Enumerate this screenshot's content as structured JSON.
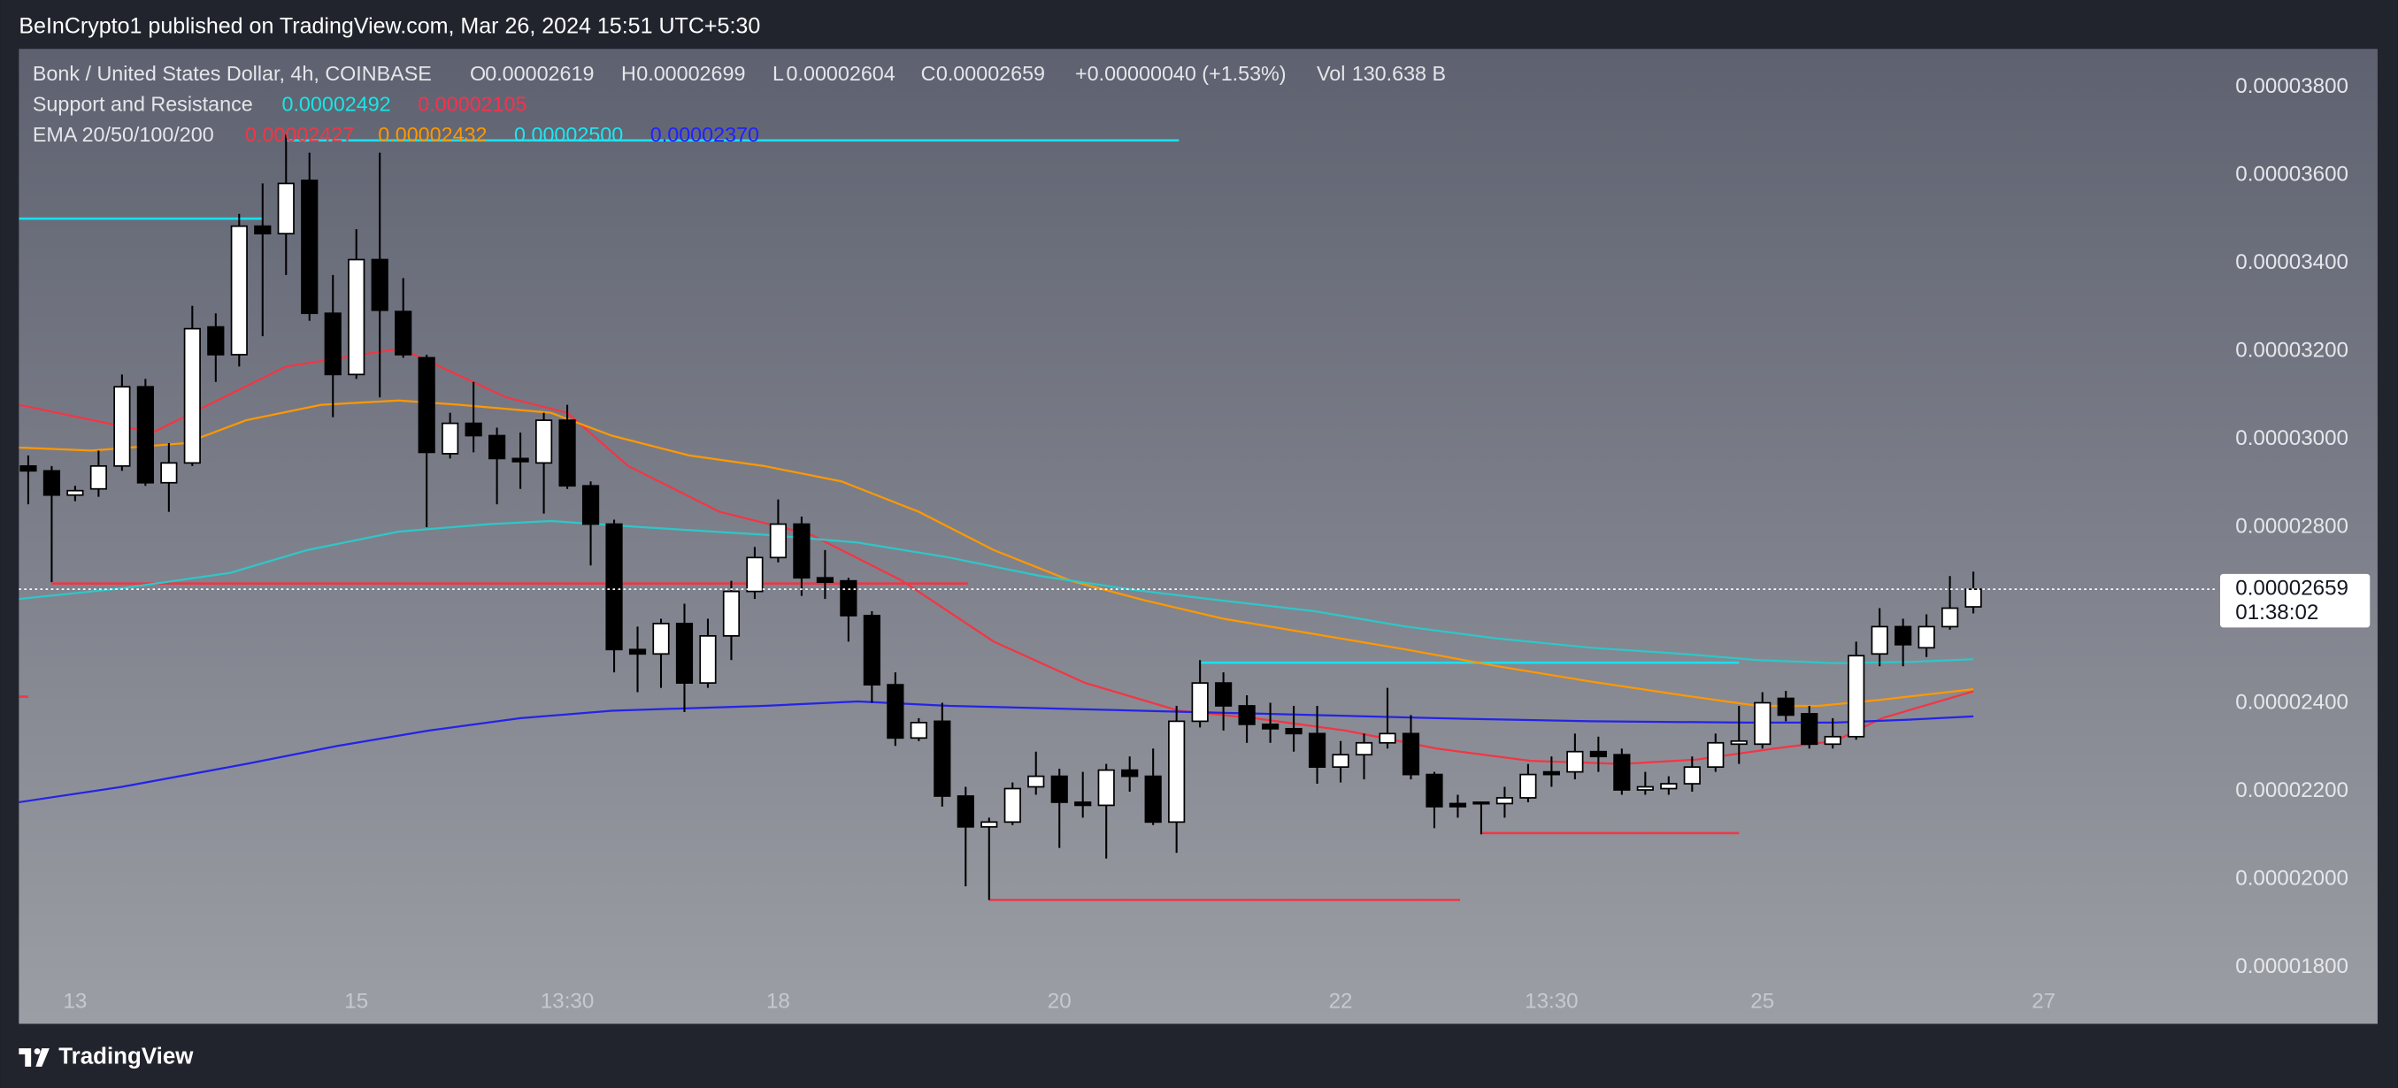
{
  "header": "BeInCrypto1 published on TradingView.com, Mar 26, 2024 15:51 UTC+5:30",
  "footer": "TradingView",
  "chart_data": {
    "type": "candlestick",
    "title": "Bonk / United States Dollar, 4h, COINBASE",
    "ohlc_labels": [
      "O",
      "H",
      "L",
      "C"
    ],
    "change": "+0.00000040 (+1.53%)",
    "volume_label": "Vol",
    "volume": "130.638 B",
    "levels_title": "Support and Resistance",
    "ema_title": "EMA 20/50/100/200",
    "countdown": "01:38:02",
    "up_color": "#ffffff",
    "down_color": "#000000",
    "grid": false,
    "xlim": [
      -0.4,
      93.4
    ],
    "xticks": [
      {
        "value": 2,
        "label": "13"
      },
      {
        "value": 14,
        "label": "15"
      },
      {
        "value": 23,
        "label": "13:30"
      },
      {
        "value": 32,
        "label": "18"
      },
      {
        "value": 44,
        "label": "20"
      },
      {
        "value": 56,
        "label": "22"
      },
      {
        "value": 65,
        "label": "13:30"
      },
      {
        "value": 74,
        "label": "25"
      },
      {
        "value": 86,
        "label": "27"
      }
    ],
    "ylim": [
      1.6715e-05,
      3.8868e-05
    ],
    "yticks": [
      {
        "value": 3.8e-05,
        "label": "0.00003800"
      },
      {
        "value": 3.6e-05,
        "label": "0.00003600"
      },
      {
        "value": 3.4e-05,
        "label": "0.00003400"
      },
      {
        "value": 3.2e-05,
        "label": "0.00003200"
      },
      {
        "value": 3e-05,
        "label": "0.00003000"
      },
      {
        "value": 2.8e-05,
        "label": "0.00002800"
      },
      {
        "value": 2.6e-05,
        "label": "0.00002600"
      },
      {
        "value": 2.4e-05,
        "label": "0.00002400"
      },
      {
        "value": 2.2e-05,
        "label": "0.00002200"
      },
      {
        "value": 2e-05,
        "label": "0.00002000"
      },
      {
        "value": 1.8e-05,
        "label": "0.00001800"
      }
    ],
    "candles": {
      "open": [
        2.939e-05,
        2.928e-05,
        2.873e-05,
        2.887e-05,
        2.939e-05,
        3.119e-05,
        2.901e-05,
        2.946e-05,
        3.255e-05,
        3.192e-05,
        3.484e-05,
        3.467e-05,
        3.588e-05,
        3.286e-05,
        3.147e-05,
        3.408e-05,
        3.29e-05,
        3.185e-05,
        2.967e-05,
        3.036e-05,
        3.008e-05,
        2.956e-05,
        2.946e-05,
        3.043e-05,
        2.894e-05,
        2.807e-05,
        2.522e-05,
        2.512e-05,
        2.581e-05,
        2.446e-05,
        2.553e-05,
        2.654e-05,
        2.731e-05,
        2.807e-05,
        2.685e-05,
        2.678e-05,
        2.599e-05,
        2.442e-05,
        2.321e-05,
        2.359e-05,
        2.189e-05,
        2.119e-05,
        2.13e-05,
        2.21e-05,
        2.234e-05,
        2.175e-05,
        2.168e-05,
        2.248e-05,
        2.234e-05,
        2.13e-05,
        2.359e-05,
        2.446e-05,
        2.394e-05,
        2.352e-05,
        2.342e-05,
        2.331e-05,
        2.255e-05,
        2.283e-05,
        2.31e-05,
        2.331e-05,
        2.238e-05,
        2.172e-05,
        2.172e-05,
        2.172e-05,
        2.185e-05,
        2.244e-05,
        2.244e-05,
        2.29e-05,
        2.283e-05,
        2.203e-05,
        2.206e-05,
        2.217e-05,
        2.255e-05,
        2.307e-05,
        2.307e-05,
        2.411e-05,
        2.376e-05,
        2.307e-05,
        2.324e-05,
        2.512e-05,
        2.574e-05,
        2.526e-05,
        2.574e-05,
        2.619e-05
      ],
      "high": [
        2.963e-05,
        2.939e-05,
        2.894e-05,
        2.974e-05,
        3.147e-05,
        3.137e-05,
        2.991e-05,
        3.303e-05,
        3.286e-05,
        3.512e-05,
        3.581e-05,
        3.692e-05,
        3.651e-05,
        3.373e-05,
        3.477e-05,
        3.651e-05,
        3.366e-05,
        3.192e-05,
        3.06e-05,
        3.13e-05,
        3.026e-05,
        3.015e-05,
        3.06e-05,
        3.078e-05,
        2.904e-05,
        2.817e-05,
        2.574e-05,
        2.592e-05,
        2.626e-05,
        2.592e-05,
        2.678e-05,
        2.755e-05,
        2.863e-05,
        2.824e-05,
        2.748e-05,
        2.685e-05,
        2.609e-05,
        2.47e-05,
        2.366e-05,
        2.401e-05,
        2.21e-05,
        2.14e-05,
        2.22e-05,
        2.29e-05,
        2.251e-05,
        2.244e-05,
        2.262e-05,
        2.279e-05,
        2.297e-05,
        2.394e-05,
        2.498e-05,
        2.47e-05,
        2.418e-05,
        2.401e-05,
        2.394e-05,
        2.394e-05,
        2.314e-05,
        2.331e-05,
        2.435e-05,
        2.373e-05,
        2.244e-05,
        2.192e-05,
        2.175e-05,
        2.21e-05,
        2.262e-05,
        2.279e-05,
        2.331e-05,
        2.324e-05,
        2.297e-05,
        2.244e-05,
        2.234e-05,
        2.279e-05,
        2.331e-05,
        2.394e-05,
        2.425e-05,
        2.428e-05,
        2.394e-05,
        2.366e-05,
        2.54e-05,
        2.616e-05,
        2.592e-05,
        2.602e-05,
        2.689e-05,
        2.699e-05
      ],
      "low": [
        2.852e-05,
        2.675e-05,
        2.859e-05,
        2.869e-05,
        2.928e-05,
        2.894e-05,
        2.835e-05,
        2.939e-05,
        3.13e-05,
        3.165e-05,
        3.234e-05,
        3.373e-05,
        3.269e-05,
        3.05e-05,
        3.137e-05,
        3.095e-05,
        3.185e-05,
        2.8e-05,
        2.956e-05,
        2.97e-05,
        2.852e-05,
        2.887e-05,
        2.831e-05,
        2.887e-05,
        2.713e-05,
        2.47e-05,
        2.425e-05,
        2.435e-05,
        2.38e-05,
        2.435e-05,
        2.498e-05,
        2.637e-05,
        2.72e-05,
        2.644e-05,
        2.637e-05,
        2.54e-05,
        2.401e-05,
        2.303e-05,
        2.314e-05,
        2.165e-05,
        1.984e-05,
        1.953e-05,
        2.123e-05,
        2.192e-05,
        2.071e-05,
        2.14e-05,
        2.047e-05,
        2.199e-05,
        2.123e-05,
        2.06e-05,
        2.345e-05,
        2.338e-05,
        2.31e-05,
        2.31e-05,
        2.29e-05,
        2.217e-05,
        2.22e-05,
        2.227e-05,
        2.297e-05,
        2.227e-05,
        2.116e-05,
        2.14e-05,
        2.102e-05,
        2.14e-05,
        2.175e-05,
        2.21e-05,
        2.227e-05,
        2.244e-05,
        2.192e-05,
        2.192e-05,
        2.192e-05,
        2.199e-05,
        2.244e-05,
        2.262e-05,
        2.297e-05,
        2.359e-05,
        2.297e-05,
        2.297e-05,
        2.317e-05,
        2.484e-05,
        2.484e-05,
        2.505e-05,
        2.567e-05,
        2.604e-05
      ],
      "close": [
        2.928e-05,
        2.873e-05,
        2.883e-05,
        2.939e-05,
        3.119e-05,
        2.901e-05,
        2.946e-05,
        3.251e-05,
        3.192e-05,
        3.484e-05,
        3.467e-05,
        3.581e-05,
        3.286e-05,
        3.147e-05,
        3.408e-05,
        3.293e-05,
        3.192e-05,
        2.97e-05,
        3.036e-05,
        3.008e-05,
        2.956e-05,
        2.949e-05,
        3.043e-05,
        2.894e-05,
        2.807e-05,
        2.522e-05,
        2.512e-05,
        2.581e-05,
        2.446e-05,
        2.553e-05,
        2.654e-05,
        2.731e-05,
        2.807e-05,
        2.685e-05,
        2.675e-05,
        2.599e-05,
        2.442e-05,
        2.321e-05,
        2.356e-05,
        2.189e-05,
        2.119e-05,
        2.13e-05,
        2.206e-05,
        2.234e-05,
        2.175e-05,
        2.168e-05,
        2.248e-05,
        2.234e-05,
        2.13e-05,
        2.359e-05,
        2.446e-05,
        2.394e-05,
        2.352e-05,
        2.342e-05,
        2.331e-05,
        2.255e-05,
        2.283e-05,
        2.31e-05,
        2.331e-05,
        2.238e-05,
        2.165e-05,
        2.165e-05,
        2.175e-05,
        2.185e-05,
        2.238e-05,
        2.238e-05,
        2.29e-05,
        2.279e-05,
        2.203e-05,
        2.21e-05,
        2.217e-05,
        2.255e-05,
        2.31e-05,
        2.314e-05,
        2.401e-05,
        2.373e-05,
        2.307e-05,
        2.324e-05,
        2.508e-05,
        2.574e-05,
        2.533e-05,
        2.574e-05,
        2.616e-05,
        2.659e-05
      ]
    },
    "series": [
      {
        "color": "#f23645",
        "legend_value": "0.00002427",
        "x": [
          -0.4,
          5.3,
          11.0,
          15.9,
          20.4,
          23.0,
          25.6,
          29.5,
          33.4,
          37.3,
          41.2,
          45.1,
          49.1,
          52.3,
          56.2,
          60.1,
          64.1,
          68.0,
          71.2,
          74.5,
          77.1,
          79.1,
          83.0
        ],
        "values": [
          3.078e-05,
          3.015e-05,
          3.165e-05,
          3.206e-05,
          3.095e-05,
          3.06e-05,
          2.939e-05,
          2.835e-05,
          2.783e-05,
          2.678e-05,
          2.54e-05,
          2.446e-05,
          2.383e-05,
          2.366e-05,
          2.338e-05,
          2.297e-05,
          2.269e-05,
          2.262e-05,
          2.272e-05,
          2.297e-05,
          2.314e-05,
          2.366e-05,
          2.427e-05
        ]
      },
      {
        "color": "#ff9800",
        "legend_value": "0.00002432",
        "x": [
          -0.4,
          2.7,
          6.7,
          9.3,
          12.5,
          15.8,
          18.4,
          22.3,
          24.9,
          28.2,
          31.4,
          34.7,
          38.0,
          41.2,
          44.5,
          47.7,
          51.0,
          54.9,
          58.8,
          62.7,
          66.7,
          70.6,
          73.8,
          76.4,
          79.1,
          83.0
        ],
        "values": [
          2.981e-05,
          2.974e-05,
          2.991e-05,
          3.043e-05,
          3.078e-05,
          3.088e-05,
          3.078e-05,
          3.06e-05,
          3.008e-05,
          2.963e-05,
          2.939e-05,
          2.904e-05,
          2.835e-05,
          2.748e-05,
          2.678e-05,
          2.633e-05,
          2.592e-05,
          2.557e-05,
          2.522e-05,
          2.484e-05,
          2.449e-05,
          2.418e-05,
          2.394e-05,
          2.394e-05,
          2.408e-05,
          2.432e-05
        ]
      },
      {
        "color": "#2ec7c9",
        "legend_value": "0.00002500",
        "x": [
          -0.4,
          4.0,
          8.6,
          11.9,
          15.8,
          19.7,
          22.3,
          26.2,
          31.4,
          35.4,
          39.3,
          43.2,
          47.1,
          51.0,
          54.9,
          58.8,
          62.7,
          66.7,
          70.6,
          73.8,
          77.1,
          80.4,
          83.0
        ],
        "values": [
          2.637e-05,
          2.661e-05,
          2.696e-05,
          2.748e-05,
          2.79e-05,
          2.807e-05,
          2.814e-05,
          2.8e-05,
          2.783e-05,
          2.765e-05,
          2.731e-05,
          2.689e-05,
          2.658e-05,
          2.633e-05,
          2.609e-05,
          2.574e-05,
          2.547e-05,
          2.526e-05,
          2.512e-05,
          2.498e-05,
          2.491e-05,
          2.494e-05,
          2.5e-05
        ]
      },
      {
        "color": "#2424e6",
        "legend_value": "0.00002370",
        "x": [
          -0.4,
          4.0,
          9.3,
          13.2,
          17.1,
          21.0,
          24.9,
          31.4,
          35.4,
          39.3,
          44.5,
          49.7,
          54.9,
          60.1,
          66.7,
          73.3,
          77.1,
          80.4,
          83.0
        ],
        "values": [
          2.175e-05,
          2.21e-05,
          2.262e-05,
          2.303e-05,
          2.338e-05,
          2.366e-05,
          2.383e-05,
          2.394e-05,
          2.404e-05,
          2.394e-05,
          2.387e-05,
          2.38e-05,
          2.373e-05,
          2.366e-05,
          2.359e-05,
          2.356e-05,
          2.356e-05,
          2.363e-05,
          2.37e-05
        ]
      }
    ],
    "levels": [
      {
        "value": 3.679e-05,
        "x": [
          11.0,
          49.1
        ],
        "color": "#19dff0"
      },
      {
        "value": 3.501e-05,
        "x": [
          -0.4,
          10.0
        ],
        "color": "#19dff0"
      },
      {
        "value": 2.672e-05,
        "x": [
          1.0,
          40.1
        ],
        "color": "#f23645"
      },
      {
        "value": 1.953e-05,
        "x": [
          41.0,
          61.1
        ],
        "color": "#f23645"
      },
      {
        "value": 2.492e-05,
        "x": [
          50.0,
          73.0
        ],
        "color": "#19dff0"
      },
      {
        "value": 2.105e-05,
        "x": [
          62.0,
          73.0
        ],
        "color": "#f23645"
      },
      {
        "value": 2.415e-05,
        "x": [
          -0.4,
          0.0
        ],
        "color": "#f23645"
      }
    ]
  }
}
